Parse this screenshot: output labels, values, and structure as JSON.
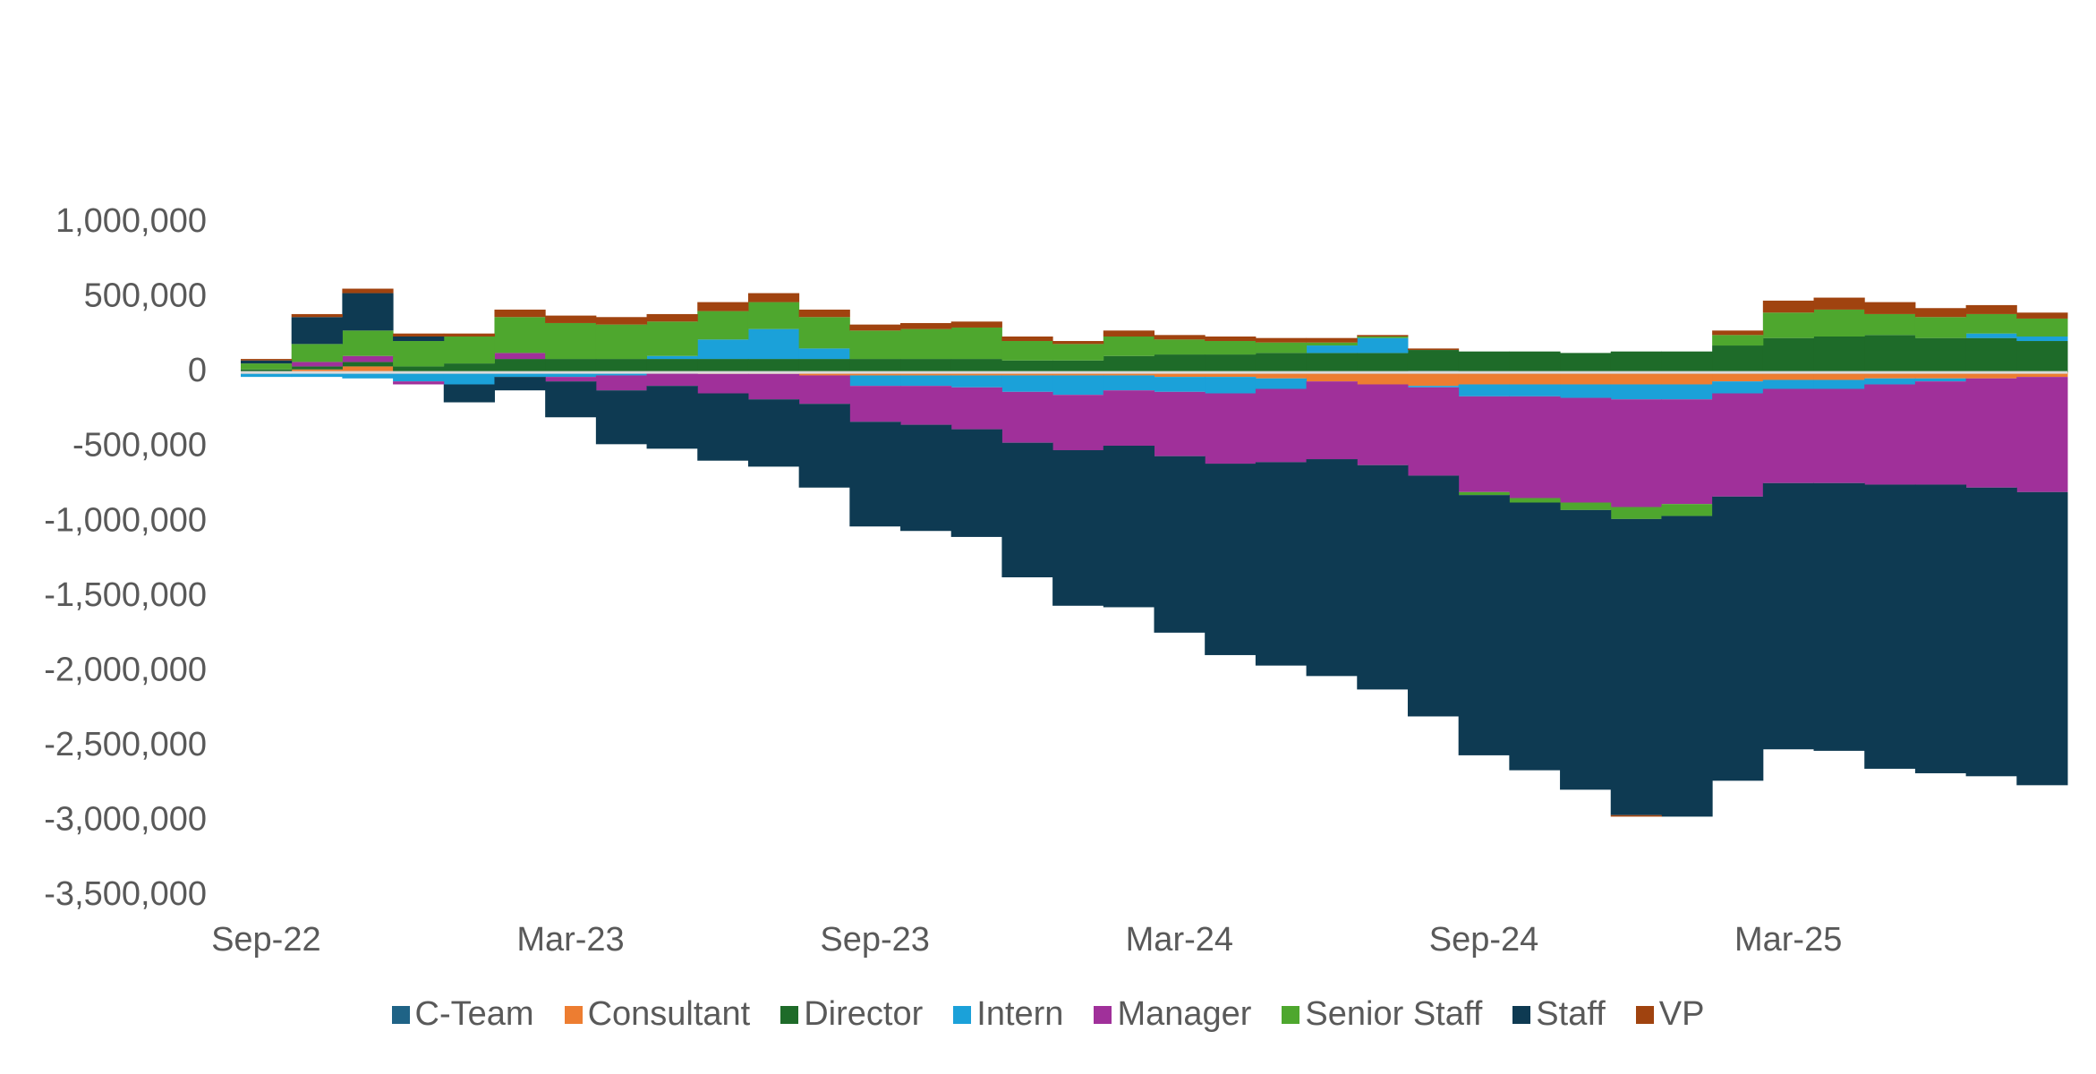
{
  "chart_data": {
    "type": "bar",
    "stacked": true,
    "categories": [
      "Sep-22",
      null,
      null,
      null,
      null,
      null,
      "Mar-23",
      null,
      null,
      null,
      null,
      null,
      "Sep-23",
      null,
      null,
      null,
      null,
      null,
      "Mar-24",
      null,
      null,
      null,
      null,
      null,
      "Sep-24",
      null,
      null,
      null,
      null,
      null,
      "Mar-25",
      null,
      null,
      null,
      null,
      null
    ],
    "ylim": [
      -3500000,
      1000000
    ],
    "yticks": [
      {
        "value": -3500000,
        "label": "-3,500,000"
      },
      {
        "value": -3000000,
        "label": "-3,000,000"
      },
      {
        "value": -2500000,
        "label": "-2,500,000"
      },
      {
        "value": -2000000,
        "label": "-2,000,000"
      },
      {
        "value": -1500000,
        "label": "-1,500,000"
      },
      {
        "value": -1000000,
        "label": "-1,000,000"
      },
      {
        "value": -500000,
        "label": "-500,000"
      },
      0,
      {
        "value": 500000,
        "label": "500,000"
      },
      {
        "value": 1000000,
        "label": "1,000,000"
      }
    ],
    "grid": false,
    "legend": "bottom",
    "series": [
      {
        "name": "C-Team",
        "color": "#1f6386",
        "values": [
          -10000,
          0,
          0,
          0,
          0,
          0,
          0,
          0,
          0,
          0,
          0,
          0,
          0,
          0,
          0,
          0,
          0,
          0,
          0,
          0,
          0,
          0,
          0,
          10000,
          0,
          0,
          0,
          0,
          0,
          0,
          0,
          0,
          0,
          0,
          0,
          0
        ]
      },
      {
        "name": "Consultant",
        "color": "#ed7d31",
        "values": [
          0,
          20000,
          40000,
          0,
          0,
          0,
          0,
          0,
          0,
          -10000,
          -10000,
          -20000,
          -20000,
          -20000,
          -20000,
          -20000,
          -20000,
          -20000,
          -30000,
          -30000,
          -40000,
          -60000,
          -80000,
          -90000,
          -80000,
          -80000,
          -80000,
          -80000,
          -80000,
          -60000,
          -50000,
          -50000,
          -40000,
          -40000,
          -40000,
          -30000
        ]
      },
      {
        "name": "Director",
        "color": "#1e6b29",
        "values": [
          20000,
          20000,
          30000,
          40000,
          60000,
          90000,
          90000,
          90000,
          90000,
          90000,
          90000,
          90000,
          90000,
          90000,
          90000,
          80000,
          80000,
          110000,
          120000,
          120000,
          130000,
          130000,
          130000,
          140000,
          140000,
          140000,
          130000,
          140000,
          140000,
          180000,
          230000,
          240000,
          250000,
          230000,
          230000,
          210000
        ]
      },
      {
        "name": "Intern",
        "color": "#1ba1d9",
        "values": [
          -20000,
          -30000,
          -40000,
          -60000,
          -80000,
          -30000,
          -30000,
          -20000,
          20000,
          130000,
          200000,
          70000,
          -70000,
          -70000,
          -80000,
          -110000,
          -130000,
          -100000,
          -100000,
          -110000,
          -70000,
          50000,
          100000,
          -10000,
          -80000,
          -80000,
          -90000,
          -100000,
          -100000,
          -80000,
          -60000,
          -60000,
          -40000,
          -20000,
          30000,
          30000
        ]
      },
      {
        "name": "Manager",
        "color": "#a0309a",
        "values": [
          0,
          30000,
          40000,
          -20000,
          0,
          40000,
          -30000,
          -100000,
          -90000,
          -130000,
          -170000,
          -190000,
          -240000,
          -260000,
          -280000,
          -340000,
          -370000,
          -370000,
          -430000,
          -470000,
          -490000,
          -520000,
          -540000,
          -590000,
          -640000,
          -680000,
          -700000,
          -720000,
          -700000,
          -690000,
          -630000,
          -630000,
          -670000,
          -690000,
          -730000,
          -770000
        ]
      },
      {
        "name": "Senior Staff",
        "color": "#4ea72e",
        "values": [
          40000,
          120000,
          170000,
          170000,
          180000,
          240000,
          240000,
          230000,
          230000,
          190000,
          180000,
          210000,
          190000,
          200000,
          210000,
          130000,
          110000,
          130000,
          100000,
          90000,
          70000,
          20000,
          10000,
          0,
          -20000,
          -30000,
          -50000,
          -80000,
          -80000,
          70000,
          170000,
          180000,
          140000,
          140000,
          130000,
          120000
        ]
      },
      {
        "name": "Staff",
        "color": "#0e3a52",
        "values": [
          20000,
          180000,
          250000,
          30000,
          -120000,
          -90000,
          -240000,
          -360000,
          -420000,
          -450000,
          -450000,
          -560000,
          -700000,
          -710000,
          -720000,
          -900000,
          -1040000,
          -1080000,
          -1180000,
          -1280000,
          -1360000,
          -1450000,
          -1500000,
          -1610000,
          -1740000,
          -1790000,
          -1870000,
          -1980000,
          -2010000,
          -1900000,
          -1780000,
          -1790000,
          -1900000,
          -1930000,
          -1930000,
          -1960000
        ]
      },
      {
        "name": "VP",
        "color": "#a0430f",
        "values": [
          10000,
          20000,
          30000,
          20000,
          20000,
          50000,
          50000,
          50000,
          50000,
          60000,
          60000,
          50000,
          40000,
          40000,
          40000,
          30000,
          20000,
          40000,
          30000,
          30000,
          30000,
          30000,
          10000,
          10000,
          0,
          0,
          0,
          -10000,
          0,
          30000,
          80000,
          80000,
          80000,
          60000,
          60000,
          40000
        ]
      }
    ]
  }
}
